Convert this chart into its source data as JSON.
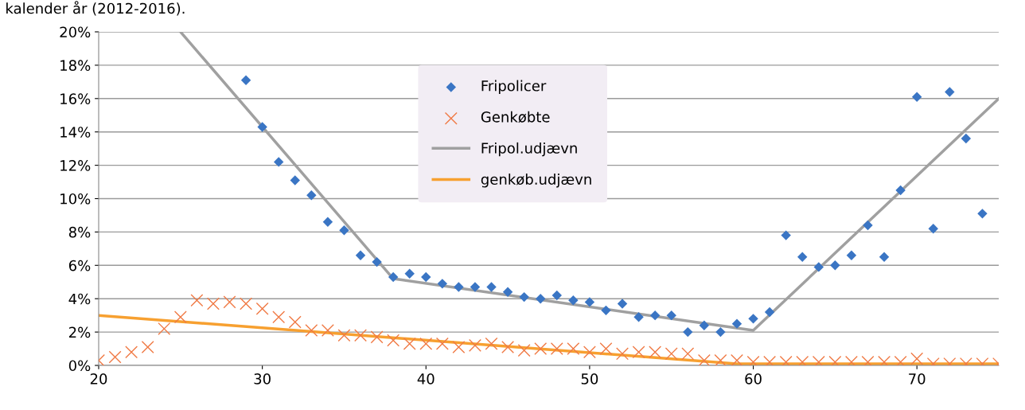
{
  "chart_data": {
    "type": "scatter",
    "title": "kalender år (2012-2016).",
    "xlim": [
      20,
      75
    ],
    "xticks": [
      20,
      30,
      40,
      50,
      60,
      70
    ],
    "ylim": [
      0,
      20
    ],
    "yticks": [
      {
        "value": 0,
        "label": "0%"
      },
      {
        "value": 2,
        "label": "2%"
      },
      {
        "value": 4,
        "label": "4%"
      },
      {
        "value": 6,
        "label": "6%"
      },
      {
        "value": 8,
        "label": "8%"
      },
      {
        "value": 10,
        "label": "10%"
      },
      {
        "value": 12,
        "label": "12%"
      },
      {
        "value": 14,
        "label": "14%"
      },
      {
        "value": 16,
        "label": "16%"
      },
      {
        "value": 18,
        "label": "18%"
      },
      {
        "value": 20,
        "label": "20%"
      }
    ],
    "grid": "y",
    "legend": "top",
    "series": [
      {
        "name": "Fripolicer",
        "marker": "diamond",
        "color": "#3a75c4",
        "x": [
          29,
          30,
          31,
          32,
          33,
          34,
          35,
          36,
          37,
          38,
          39,
          40,
          41,
          42,
          43,
          44,
          45,
          46,
          47,
          48,
          49,
          50,
          51,
          52,
          53,
          54,
          55,
          56,
          57,
          58,
          59,
          60,
          61,
          62,
          63,
          64,
          65,
          66,
          67,
          68,
          69,
          70,
          71,
          72,
          73,
          74
        ],
        "values": [
          17.1,
          14.3,
          12.2,
          11.1,
          10.2,
          8.6,
          8.1,
          6.6,
          6.2,
          5.3,
          5.5,
          5.3,
          4.9,
          4.7,
          4.7,
          4.7,
          4.4,
          4.1,
          4.0,
          4.2,
          3.9,
          3.8,
          3.3,
          3.7,
          2.9,
          3.0,
          3.0,
          2.0,
          2.4,
          2.0,
          2.5,
          2.8,
          3.2,
          7.8,
          6.5,
          5.9,
          6.0,
          6.6,
          8.4,
          6.5,
          10.5,
          16.1,
          8.2,
          16.4,
          13.6,
          9.1
        ]
      },
      {
        "name": "Genkøbte",
        "marker": "cross",
        "color": "#f07a45",
        "x": [
          20,
          21,
          22,
          23,
          24,
          25,
          26,
          27,
          28,
          29,
          30,
          31,
          32,
          33,
          34,
          35,
          36,
          37,
          38,
          39,
          40,
          41,
          42,
          43,
          44,
          45,
          46,
          47,
          48,
          49,
          50,
          51,
          52,
          53,
          54,
          55,
          56,
          57,
          58,
          59,
          60,
          61,
          62,
          63,
          64,
          65,
          66,
          67,
          68,
          69,
          70,
          71,
          72,
          73,
          74,
          75
        ],
        "values": [
          0.3,
          0.5,
          0.8,
          1.1,
          2.2,
          2.9,
          3.9,
          3.7,
          3.8,
          3.7,
          3.4,
          2.9,
          2.6,
          2.1,
          2.1,
          1.8,
          1.8,
          1.7,
          1.5,
          1.3,
          1.3,
          1.3,
          1.1,
          1.2,
          1.3,
          1.1,
          0.9,
          1.0,
          1.0,
          1.0,
          0.8,
          1.0,
          0.7,
          0.8,
          0.8,
          0.7,
          0.7,
          0.3,
          0.3,
          0.3,
          0.2,
          0.2,
          0.2,
          0.2,
          0.2,
          0.2,
          0.2,
          0.2,
          0.2,
          0.2,
          0.4,
          0.1,
          0.1,
          0.1,
          0.1,
          0.1
        ]
      },
      {
        "name": "Fripol.udjævn",
        "type": "line",
        "marker": "none",
        "line_style": "solid",
        "color": "#a0a0a0",
        "x": [
          25,
          38,
          60,
          75
        ],
        "values": [
          20,
          5.2,
          2.1,
          16
        ]
      },
      {
        "name": "genkøb.udjævn",
        "type": "line",
        "marker": "none",
        "line_style": "solid",
        "color": "#f7a030",
        "x": [
          20,
          59,
          75
        ],
        "values": [
          3.0,
          0.1,
          0.1
        ]
      }
    ]
  }
}
